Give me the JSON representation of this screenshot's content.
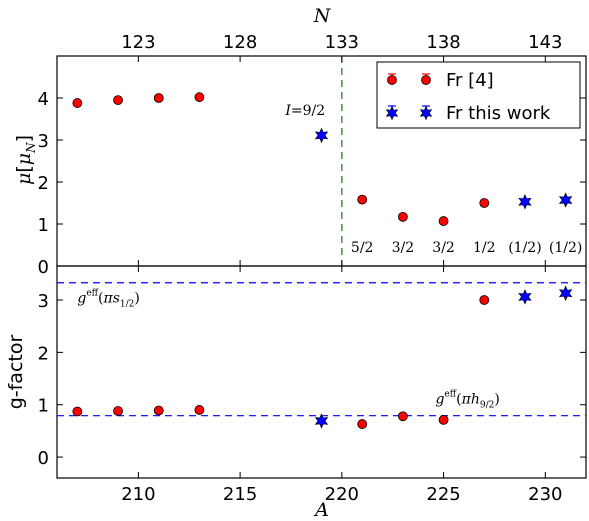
{
  "chart_data": [
    {
      "id": "mu",
      "type": "scatter",
      "xlabel": "",
      "ylabel": "μ[μ_N]",
      "xlim": [
        206,
        232
      ],
      "ylim": [
        0,
        5
      ],
      "yticks": [
        0,
        1,
        2,
        3,
        4
      ],
      "top_axis": {
        "label": "N",
        "ticks": [
          123,
          128,
          133,
          138,
          143
        ],
        "offset": 87
      },
      "series": [
        {
          "name": "Fr [4]",
          "marker": "circle",
          "color": "#ff0000",
          "x": [
            207,
            209,
            211,
            213,
            221,
            223,
            225,
            227
          ],
          "y": [
            3.88,
            3.95,
            4.0,
            4.02,
            1.58,
            1.17,
            1.07,
            1.5
          ]
        },
        {
          "name": "Fr this work",
          "marker": "star",
          "color": "#0000ff",
          "x": [
            219,
            229,
            231
          ],
          "y": [
            3.11,
            1.53,
            1.57
          ]
        }
      ],
      "vline": {
        "x": 220,
        "color": "#008000",
        "style": "dashed"
      },
      "annotations": [
        {
          "text": "I = 9/2",
          "x": 218.2,
          "y": 3.6
        },
        {
          "text": "5/2",
          "x": 221,
          "y": 0.45
        },
        {
          "text": "3/2",
          "x": 223,
          "y": 0.45
        },
        {
          "text": "3/2",
          "x": 225,
          "y": 0.45
        },
        {
          "text": "1/2",
          "x": 227,
          "y": 0.45
        },
        {
          "text": "(1/2)",
          "x": 229,
          "y": 0.45
        },
        {
          "text": "(1/2)",
          "x": 231,
          "y": 0.45
        }
      ],
      "legend": "top-right"
    },
    {
      "id": "g",
      "type": "scatter",
      "xlabel": "A",
      "ylabel": "g-factor",
      "xlim": [
        206,
        232
      ],
      "ylim": [
        -0.4,
        3.65
      ],
      "xticks": [
        210,
        215,
        220,
        225,
        230
      ],
      "yticks": [
        0,
        1,
        2,
        3
      ],
      "series": [
        {
          "name": "Fr [4]",
          "marker": "circle",
          "color": "#ff0000",
          "x": [
            207,
            209,
            211,
            213,
            221,
            223,
            225,
            227
          ],
          "y": [
            0.87,
            0.88,
            0.89,
            0.9,
            0.63,
            0.78,
            0.71,
            3.0
          ]
        },
        {
          "name": "Fr this work",
          "marker": "star",
          "color": "#0000ff",
          "x": [
            219,
            229,
            231
          ],
          "y": [
            0.69,
            3.06,
            3.13
          ]
        }
      ],
      "hlines": [
        {
          "y": 3.33,
          "color": "#0000ff",
          "style": "dashed",
          "label": "g^eff(πs_1/2)"
        },
        {
          "y": 0.79,
          "color": "#0000ff",
          "style": "dashed",
          "label": "g^eff(πh_9/2)"
        }
      ],
      "annotations": [
        {
          "text": "g^eff(πs_1/2)",
          "x": 207,
          "y": 2.95
        },
        {
          "text": "g^eff(πh_9/2)",
          "x": 224.6,
          "y": 1.02
        }
      ]
    }
  ]
}
